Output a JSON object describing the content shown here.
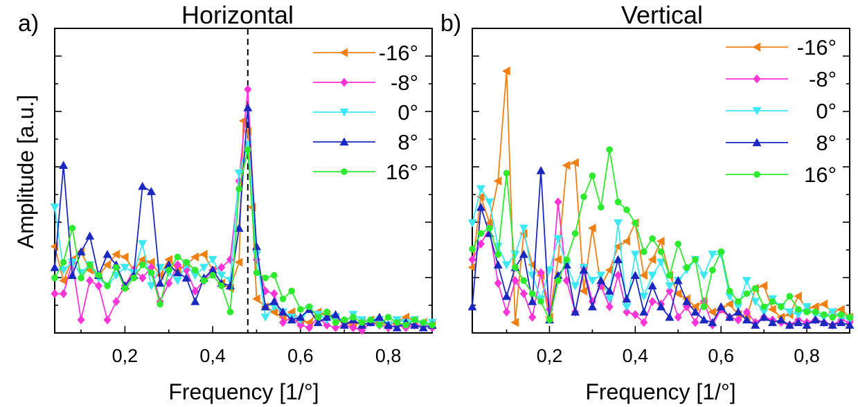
{
  "chart_data": [
    {
      "type": "line",
      "panel_label": "a)",
      "title": "Horizontal",
      "xlabel": "Frequency [1/°]",
      "ylabel": "Amplitude [a.u.]",
      "xlim": [
        0.04,
        0.9
      ],
      "ylim": [
        0,
        1.0
      ],
      "x_ticks": [
        0.2,
        0.4,
        0.6,
        0.8
      ],
      "x_tick_labels": [
        "0,2",
        "0,4",
        "0,6",
        "0,8"
      ],
      "y_tick_labels_shown": false,
      "grid": false,
      "legend_position": "top-right",
      "reference_line": {
        "x": 0.48,
        "style": "dashed"
      },
      "series": [
        {
          "name": "-16°",
          "color": "#f07f14",
          "marker": "triangle-left",
          "x": [
            0.04,
            0.06,
            0.08,
            0.1,
            0.12,
            0.14,
            0.16,
            0.18,
            0.2,
            0.22,
            0.24,
            0.26,
            0.28,
            0.3,
            0.32,
            0.34,
            0.36,
            0.38,
            0.4,
            0.42,
            0.44,
            0.46,
            0.47,
            0.48,
            0.49,
            0.5,
            0.52,
            0.54,
            0.56,
            0.58,
            0.6,
            0.62,
            0.64,
            0.66,
            0.68,
            0.7,
            0.72,
            0.74,
            0.76,
            0.78,
            0.8,
            0.82,
            0.84,
            0.86,
            0.88,
            0.9
          ],
          "y": [
            0.33,
            0.2,
            0.28,
            0.31,
            0.24,
            0.22,
            0.26,
            0.3,
            0.29,
            0.24,
            0.28,
            0.27,
            0.22,
            0.28,
            0.24,
            0.26,
            0.29,
            0.3,
            0.24,
            0.19,
            0.17,
            0.27,
            0.81,
            0.77,
            0.48,
            0.13,
            0.1,
            0.08,
            0.06,
            0.08,
            0.05,
            0.04,
            0.08,
            0.07,
            0.06,
            0.04,
            0.03,
            0.04,
            0.05,
            0.04,
            0.03,
            0.04,
            0.06,
            0.05,
            0.04,
            0.03
          ]
        },
        {
          "name": "-8°",
          "color": "#ff33d6",
          "marker": "diamond",
          "x": [
            0.04,
            0.06,
            0.08,
            0.1,
            0.12,
            0.14,
            0.16,
            0.18,
            0.2,
            0.22,
            0.24,
            0.26,
            0.28,
            0.3,
            0.32,
            0.34,
            0.36,
            0.38,
            0.4,
            0.42,
            0.44,
            0.46,
            0.48,
            0.5,
            0.52,
            0.54,
            0.56,
            0.58,
            0.6,
            0.62,
            0.64,
            0.66,
            0.68,
            0.7,
            0.72,
            0.74,
            0.76,
            0.78,
            0.8,
            0.82,
            0.84,
            0.86,
            0.88,
            0.9
          ],
          "y": [
            0.15,
            0.15,
            0.27,
            0.05,
            0.2,
            0.18,
            0.05,
            0.12,
            0.18,
            0.24,
            0.21,
            0.25,
            0.12,
            0.19,
            0.26,
            0.24,
            0.16,
            0.2,
            0.24,
            0.25,
            0.28,
            0.58,
            0.93,
            0.28,
            0.16,
            0.15,
            0.04,
            0.06,
            0.03,
            0.02,
            0.06,
            0.03,
            0.02,
            0.03,
            0.02,
            0.01,
            0.04,
            0.03,
            0.02,
            0.03,
            0.02,
            0.03,
            0.03,
            0.02
          ]
        },
        {
          "name": "0°",
          "color": "#3ee8f2",
          "marker": "triangle-down",
          "x": [
            0.04,
            0.06,
            0.08,
            0.1,
            0.12,
            0.14,
            0.16,
            0.18,
            0.2,
            0.22,
            0.24,
            0.26,
            0.28,
            0.3,
            0.32,
            0.34,
            0.36,
            0.38,
            0.4,
            0.42,
            0.44,
            0.46,
            0.48,
            0.5,
            0.52,
            0.54,
            0.56,
            0.58,
            0.6,
            0.62,
            0.64,
            0.66,
            0.68,
            0.7,
            0.72,
            0.74,
            0.76,
            0.78,
            0.8,
            0.82,
            0.84,
            0.86,
            0.88,
            0.9
          ],
          "y": [
            0.48,
            0.24,
            0.27,
            0.23,
            0.26,
            0.21,
            0.18,
            0.22,
            0.25,
            0.23,
            0.34,
            0.18,
            0.25,
            0.23,
            0.2,
            0.26,
            0.22,
            0.25,
            0.28,
            0.22,
            0.2,
            0.61,
            0.72,
            0.3,
            0.06,
            0.1,
            0.08,
            0.06,
            0.05,
            0.09,
            0.07,
            0.05,
            0.06,
            0.04,
            0.07,
            0.05,
            0.04,
            0.05,
            0.03,
            0.05,
            0.04,
            0.05,
            0.03,
            0.04
          ]
        },
        {
          "name": "8°",
          "color": "#1b28c0",
          "marker": "triangle-up",
          "x": [
            0.04,
            0.06,
            0.08,
            0.1,
            0.12,
            0.14,
            0.16,
            0.18,
            0.2,
            0.22,
            0.24,
            0.26,
            0.28,
            0.3,
            0.32,
            0.34,
            0.36,
            0.38,
            0.4,
            0.42,
            0.44,
            0.46,
            0.48,
            0.5,
            0.52,
            0.54,
            0.56,
            0.58,
            0.6,
            0.62,
            0.64,
            0.66,
            0.68,
            0.7,
            0.72,
            0.74,
            0.76,
            0.78,
            0.8,
            0.82,
            0.84,
            0.86,
            0.88,
            0.9
          ],
          "y": [
            0.25,
            0.64,
            0.22,
            0.31,
            0.37,
            0.22,
            0.3,
            0.26,
            0.18,
            0.22,
            0.56,
            0.54,
            0.19,
            0.26,
            0.23,
            0.21,
            0.12,
            0.21,
            0.24,
            0.19,
            0.18,
            0.4,
            0.86,
            0.33,
            0.1,
            0.12,
            0.08,
            0.05,
            0.06,
            0.09,
            0.04,
            0.06,
            0.07,
            0.03,
            0.05,
            0.03,
            0.04,
            0.06,
            0.03,
            0.02,
            0.04,
            0.03,
            0.02,
            0.03
          ]
        },
        {
          "name": "16°",
          "color": "#2eea2e",
          "marker": "circle",
          "x": [
            0.04,
            0.06,
            0.08,
            0.1,
            0.12,
            0.14,
            0.16,
            0.18,
            0.2,
            0.22,
            0.24,
            0.26,
            0.28,
            0.3,
            0.32,
            0.34,
            0.36,
            0.38,
            0.4,
            0.42,
            0.44,
            0.46,
            0.48,
            0.5,
            0.52,
            0.54,
            0.56,
            0.58,
            0.6,
            0.62,
            0.64,
            0.66,
            0.68,
            0.7,
            0.72,
            0.74,
            0.76,
            0.78,
            0.8,
            0.82,
            0.84,
            0.86,
            0.88,
            0.9
          ],
          "y": [
            0.21,
            0.27,
            0.4,
            0.21,
            0.26,
            0.22,
            0.18,
            0.25,
            0.17,
            0.21,
            0.26,
            0.23,
            0.11,
            0.24,
            0.29,
            0.27,
            0.24,
            0.2,
            0.22,
            0.18,
            0.08,
            0.55,
            0.7,
            0.23,
            0.21,
            0.22,
            0.13,
            0.16,
            0.09,
            0.1,
            0.06,
            0.08,
            0.04,
            0.05,
            0.06,
            0.04,
            0.05,
            0.03,
            0.06,
            0.04,
            0.03,
            0.05,
            0.04,
            0.03
          ]
        }
      ]
    },
    {
      "type": "line",
      "panel_label": "b)",
      "title": "Vertical",
      "xlabel": "Frequency [1/°]",
      "ylabel": "",
      "xlim": [
        0.02,
        0.9
      ],
      "ylim": [
        0,
        1.0
      ],
      "x_ticks": [
        0.2,
        0.4,
        0.6,
        0.8
      ],
      "x_tick_labels": [
        "0,2",
        "0,4",
        "0,6",
        "0,8"
      ],
      "y_tick_labels_shown": false,
      "grid": false,
      "legend_position": "top-right",
      "series": [
        {
          "name": "-16°",
          "color": "#f07f14",
          "marker": "triangle-left",
          "x": [
            0.02,
            0.04,
            0.06,
            0.08,
            0.1,
            0.12,
            0.14,
            0.16,
            0.18,
            0.2,
            0.22,
            0.24,
            0.26,
            0.28,
            0.3,
            0.32,
            0.34,
            0.36,
            0.38,
            0.4,
            0.42,
            0.44,
            0.46,
            0.48,
            0.5,
            0.52,
            0.54,
            0.56,
            0.58,
            0.6,
            0.62,
            0.64,
            0.66,
            0.68,
            0.7,
            0.72,
            0.74,
            0.76,
            0.78,
            0.8,
            0.82,
            0.84,
            0.86,
            0.88,
            0.9
          ],
          "y": [
            0.25,
            0.52,
            0.42,
            0.58,
            1.0,
            0.04,
            0.38,
            0.26,
            0.22,
            0.06,
            0.28,
            0.64,
            0.65,
            0.16,
            0.4,
            0.18,
            0.24,
            0.33,
            0.35,
            0.42,
            0.22,
            0.28,
            0.35,
            0.22,
            0.15,
            0.13,
            0.1,
            0.12,
            0.08,
            0.09,
            0.11,
            0.07,
            0.06,
            0.17,
            0.18,
            0.09,
            0.06,
            0.07,
            0.14,
            0.09,
            0.1,
            0.11,
            0.08,
            0.09,
            0.06
          ]
        },
        {
          "name": "-8°",
          "color": "#ff33d6",
          "marker": "diamond",
          "x": [
            0.02,
            0.04,
            0.06,
            0.08,
            0.1,
            0.12,
            0.14,
            0.16,
            0.18,
            0.2,
            0.22,
            0.24,
            0.26,
            0.28,
            0.3,
            0.32,
            0.34,
            0.36,
            0.38,
            0.4,
            0.42,
            0.44,
            0.46,
            0.48,
            0.5,
            0.52,
            0.54,
            0.56,
            0.58,
            0.6,
            0.62,
            0.64,
            0.66,
            0.68,
            0.7,
            0.72,
            0.74,
            0.76,
            0.78,
            0.8,
            0.82,
            0.84,
            0.86,
            0.88,
            0.9
          ],
          "y": [
            0.28,
            0.34,
            0.4,
            0.19,
            0.08,
            0.2,
            0.15,
            0.06,
            0.23,
            0.09,
            0.5,
            0.2,
            0.08,
            0.25,
            0.12,
            0.18,
            0.1,
            0.22,
            0.08,
            0.07,
            0.04,
            0.12,
            0.11,
            0.16,
            0.06,
            0.1,
            0.04,
            0.12,
            0.03,
            0.09,
            0.06,
            0.05,
            0.08,
            0.04,
            0.06,
            0.05,
            0.04,
            0.03,
            0.05,
            0.04,
            0.05,
            0.04,
            0.03,
            0.05,
            0.04
          ]
        },
        {
          "name": "0°",
          "color": "#3ee8f2",
          "marker": "triangle-down",
          "x": [
            0.02,
            0.04,
            0.06,
            0.08,
            0.1,
            0.12,
            0.14,
            0.16,
            0.18,
            0.2,
            0.22,
            0.24,
            0.26,
            0.28,
            0.3,
            0.32,
            0.34,
            0.36,
            0.38,
            0.4,
            0.42,
            0.44,
            0.46,
            0.48,
            0.5,
            0.52,
            0.54,
            0.56,
            0.58,
            0.6,
            0.62,
            0.64,
            0.66,
            0.68,
            0.7,
            0.72,
            0.74,
            0.76,
            0.78,
            0.8,
            0.82,
            0.84,
            0.86,
            0.88,
            0.9
          ],
          "y": [
            0.42,
            0.55,
            0.5,
            0.33,
            0.26,
            0.3,
            0.4,
            0.22,
            0.13,
            0.24,
            0.36,
            0.26,
            0.18,
            0.25,
            0.2,
            0.22,
            0.13,
            0.42,
            0.1,
            0.3,
            0.14,
            0.22,
            0.27,
            0.18,
            0.2,
            0.24,
            0.28,
            0.22,
            0.3,
            0.3,
            0.14,
            0.1,
            0.2,
            0.12,
            0.08,
            0.13,
            0.1,
            0.08,
            0.07,
            0.1,
            0.07,
            0.06,
            0.08,
            0.06,
            0.05
          ]
        },
        {
          "name": "8°",
          "color": "#1b28c0",
          "marker": "triangle-up",
          "x": [
            0.02,
            0.04,
            0.06,
            0.08,
            0.1,
            0.12,
            0.14,
            0.16,
            0.18,
            0.2,
            0.22,
            0.24,
            0.26,
            0.28,
            0.3,
            0.32,
            0.34,
            0.36,
            0.38,
            0.4,
            0.42,
            0.44,
            0.46,
            0.48,
            0.5,
            0.52,
            0.54,
            0.56,
            0.58,
            0.6,
            0.62,
            0.64,
            0.66,
            0.68,
            0.7,
            0.72,
            0.74,
            0.76,
            0.78,
            0.8,
            0.82,
            0.84,
            0.86,
            0.88,
            0.9
          ],
          "y": [
            0.1,
            0.48,
            0.38,
            0.26,
            0.14,
            0.25,
            0.3,
            0.12,
            0.62,
            0.05,
            0.22,
            0.26,
            0.08,
            0.24,
            0.1,
            0.2,
            0.16,
            0.28,
            0.13,
            0.22,
            0.08,
            0.18,
            0.1,
            0.06,
            0.2,
            0.12,
            0.08,
            0.05,
            0.04,
            0.1,
            0.06,
            0.08,
            0.05,
            0.03,
            0.06,
            0.04,
            0.05,
            0.03,
            0.04,
            0.03,
            0.05,
            0.04,
            0.03,
            0.04,
            0.03
          ]
        },
        {
          "name": "16°",
          "color": "#2eea2e",
          "marker": "circle",
          "x": [
            0.02,
            0.04,
            0.06,
            0.08,
            0.1,
            0.12,
            0.14,
            0.16,
            0.18,
            0.2,
            0.22,
            0.24,
            0.26,
            0.28,
            0.3,
            0.32,
            0.34,
            0.36,
            0.38,
            0.4,
            0.42,
            0.44,
            0.46,
            0.48,
            0.5,
            0.52,
            0.54,
            0.56,
            0.58,
            0.6,
            0.62,
            0.64,
            0.66,
            0.68,
            0.7,
            0.72,
            0.74,
            0.76,
            0.78,
            0.8,
            0.82,
            0.84,
            0.86,
            0.88,
            0.9
          ],
          "y": [
            0.32,
            0.38,
            0.4,
            0.3,
            0.61,
            0.25,
            0.2,
            0.15,
            0.12,
            0.05,
            0.2,
            0.28,
            0.38,
            0.52,
            0.6,
            0.48,
            0.7,
            0.5,
            0.47,
            0.42,
            0.31,
            0.36,
            0.31,
            0.22,
            0.34,
            0.25,
            0.28,
            0.1,
            0.24,
            0.31,
            0.16,
            0.12,
            0.15,
            0.17,
            0.1,
            0.12,
            0.1,
            0.14,
            0.09,
            0.08,
            0.08,
            0.07,
            0.06,
            0.07,
            0.06
          ]
        }
      ]
    }
  ]
}
